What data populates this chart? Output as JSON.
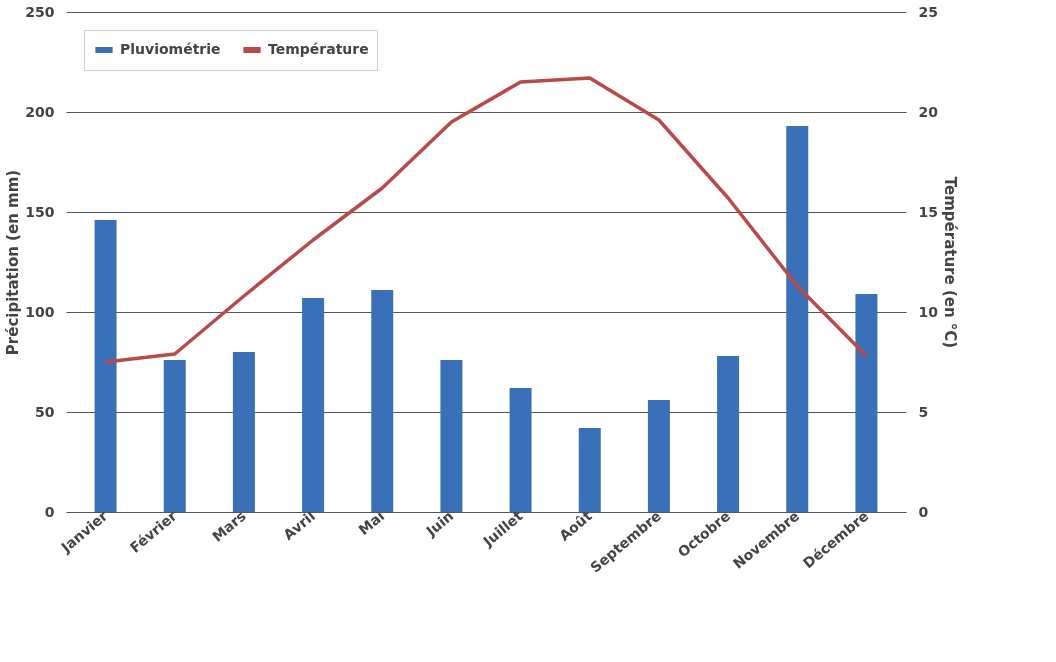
{
  "chart_data": {
    "type": "bar",
    "xlabel": null,
    "ylabel": "Précipitation (en mm)",
    "y2label": "Température (en °C)",
    "categories": [
      "Janvier",
      "Février",
      "Mars",
      "Avril",
      "Mai",
      "Juin",
      "Juillet",
      "Août",
      "Septembre",
      "Octobre",
      "Novembre",
      "Décembre"
    ],
    "series": [
      {
        "name": "Pluviométrie",
        "color": "#3a70b8",
        "values": [
          146,
          76,
          80,
          107,
          111,
          76,
          62,
          42,
          56,
          78,
          193,
          109
        ]
      },
      {
        "name": "Température",
        "type": "line",
        "axis": "y2",
        "color": "#b84a48",
        "values": [
          7.5,
          7.9,
          10.8,
          13.6,
          16.2,
          19.5,
          21.5,
          21.7,
          19.6,
          15.7,
          11.3,
          7.8
        ]
      }
    ],
    "ylim": [
      0,
      250
    ],
    "yticks": [
      0,
      50,
      100,
      150,
      200,
      250
    ],
    "y2lim": [
      0,
      25
    ],
    "y2ticks": [
      0,
      5,
      10,
      15,
      20,
      25
    ],
    "grid": "y",
    "legend": "top left",
    "marker": "none",
    "line_style": "solid"
  }
}
